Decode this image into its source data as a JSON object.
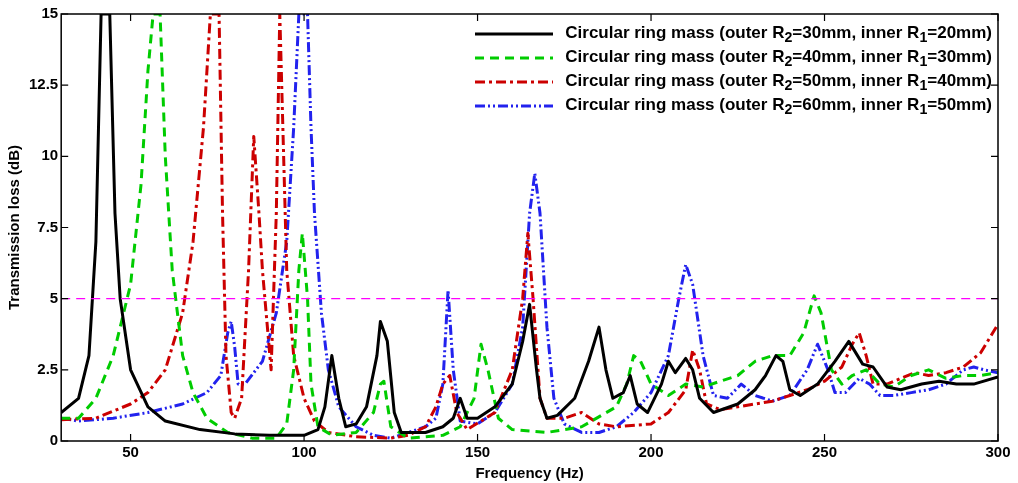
{
  "chart_data": {
    "type": "line",
    "xlabel": "Frequency (Hz)",
    "ylabel": "Transmission loss (dB)",
    "xlim": [
      30,
      300
    ],
    "xticks": [
      50,
      100,
      150,
      200,
      250,
      300
    ],
    "ylim": [
      0,
      15
    ],
    "yticks": [
      0,
      2.5,
      5,
      7.5,
      10,
      12.5,
      15
    ],
    "legend": "top right",
    "ref_lines": [
      {
        "axis": "y",
        "value": 5,
        "color": "#ff00ff",
        "line_style": "dashed"
      }
    ],
    "series": [
      {
        "name": "Circular ring mass (outer R$_{2}$=30mm, inner R$_{1}$=20mm)",
        "color": "#000000",
        "line_style": "solid",
        "x": [
          30,
          35,
          38,
          40,
          41.5,
          44,
          45.5,
          47,
          50,
          55,
          60,
          70,
          80,
          90,
          100,
          104,
          106,
          108,
          110,
          112,
          115,
          118,
          121,
          122,
          124,
          126,
          128,
          135,
          140,
          143,
          145,
          147,
          150,
          155,
          160,
          163,
          165,
          167,
          168,
          170,
          173,
          178,
          182,
          185,
          187,
          189,
          192,
          194,
          196,
          199,
          203,
          205,
          207,
          210,
          212,
          214,
          218,
          225,
          230,
          233,
          236,
          238,
          240,
          243,
          248,
          253,
          257,
          261,
          264,
          268,
          272,
          278,
          283,
          288,
          293,
          300
        ],
        "values": [
          1.0,
          1.5,
          3,
          7,
          15,
          15,
          8,
          5,
          2.5,
          1.2,
          0.7,
          0.4,
          0.25,
          0.2,
          0.2,
          0.4,
          1.2,
          3.0,
          1.5,
          0.5,
          0.6,
          1.2,
          3.0,
          4.2,
          3.5,
          1.0,
          0.3,
          0.3,
          0.5,
          0.8,
          1.5,
          0.8,
          0.8,
          1.2,
          2.0,
          3.5,
          4.8,
          2.5,
          1.5,
          0.8,
          0.9,
          1.5,
          2.8,
          4.0,
          2.5,
          1.5,
          1.7,
          2.3,
          1.3,
          1.0,
          2.0,
          2.8,
          2.4,
          2.9,
          2.5,
          1.5,
          1.0,
          1.3,
          1.8,
          2.3,
          3.0,
          2.8,
          1.8,
          1.6,
          2.0,
          2.8,
          3.5,
          2.7,
          2.6,
          1.9,
          1.8,
          2.0,
          2.1,
          2.0,
          2.0,
          2.25
        ]
      },
      {
        "name": "Circular ring mass (outer R$_{2}$=40mm, inner R$_{1}$=30mm)",
        "color": "#00cc00",
        "line_style": "dashed",
        "x": [
          30,
          35,
          40,
          45,
          50,
          53,
          55,
          56.5,
          58.5,
          60,
          62,
          65,
          68,
          72,
          78,
          85,
          92,
          95,
          97,
          98.5,
          99.5,
          101,
          102,
          104,
          108,
          115,
          120,
          122,
          123,
          125,
          130,
          140,
          145,
          149,
          151,
          153,
          156,
          160,
          170,
          180,
          190,
          193,
          195,
          197,
          200,
          205,
          210,
          215,
          220,
          225,
          230,
          235,
          240,
          244,
          247,
          249,
          252,
          255,
          258,
          262,
          266,
          270,
          275,
          280,
          285,
          290,
          295,
          300
        ],
        "values": [
          0.8,
          0.8,
          1.5,
          3,
          5.5,
          9,
          13,
          15,
          15,
          10,
          6,
          3,
          1.7,
          0.8,
          0.3,
          0.1,
          0.1,
          0.6,
          2.5,
          6,
          7.3,
          5,
          2,
          0.5,
          0.2,
          0.3,
          1.0,
          2.0,
          2.1,
          0.5,
          0.1,
          0.2,
          0.5,
          1.5,
          3.4,
          2.5,
          0.8,
          0.4,
          0.3,
          0.5,
          1.2,
          2,
          3.0,
          2.8,
          2.0,
          1.6,
          2.0,
          1.9,
          2.1,
          2.3,
          2.8,
          3.0,
          3.0,
          3.8,
          5.1,
          4.5,
          2.5,
          2.0,
          2.3,
          2.5,
          2.0,
          1.9,
          2.3,
          2.5,
          2.2,
          2.3,
          2.3,
          2.4
        ]
      },
      {
        "name": "Circular ring mass (outer R$_{2}$=50mm, inner R$_{1}$=40mm)",
        "color": "#cc0000",
        "line_style": "dashdot",
        "x": [
          30,
          40,
          50,
          55,
          60,
          65,
          68,
          71,
          73,
          75.5,
          76.5,
          77.5,
          79,
          80,
          82,
          84,
          85.5,
          87,
          88,
          90.5,
          92,
          93,
          95,
          97,
          100,
          103,
          107,
          115,
          125,
          130,
          135,
          138,
          140,
          142,
          144,
          147,
          155,
          160,
          163,
          164.5,
          166,
          168,
          170,
          175,
          180,
          185,
          190,
          200,
          205,
          210,
          212,
          214,
          216,
          220,
          225,
          230,
          235,
          240,
          245,
          250,
          255,
          258,
          260,
          262,
          264,
          268,
          272,
          276,
          280,
          285,
          290,
          295,
          300
        ],
        "values": [
          0.75,
          0.8,
          1.3,
          1.7,
          2.5,
          4.5,
          7,
          11,
          15,
          15,
          8,
          3,
          1,
          0.8,
          1.5,
          6,
          10.7,
          8,
          6,
          2.5,
          8,
          15,
          6,
          3,
          1.5,
          0.7,
          0.3,
          0.15,
          0.1,
          0.2,
          0.5,
          1.2,
          2.0,
          2.3,
          1.0,
          0.4,
          1.0,
          2.5,
          5,
          7.3,
          5,
          1.5,
          0.8,
          0.8,
          1.0,
          0.6,
          0.5,
          0.6,
          1.0,
          1.8,
          3.2,
          2.5,
          1.3,
          1.1,
          1.2,
          1.3,
          1.4,
          1.6,
          1.8,
          2.1,
          2.6,
          3.4,
          3.8,
          3.0,
          2.0,
          2.0,
          2.2,
          2.4,
          2.3,
          2.4,
          2.6,
          3.1,
          4.1
        ]
      },
      {
        "name": "Circular ring mass (outer R$_{2}$=60mm, inner R$_{1}$=50mm)",
        "color": "#2222ee",
        "line_style": "dashdotdot",
        "x": [
          30,
          35,
          45,
          55,
          65,
          72,
          76,
          78,
          79,
          80,
          81,
          83,
          88,
          92,
          95,
          97,
          98.5,
          101,
          102,
          103,
          105,
          107,
          110,
          115,
          120,
          125,
          130,
          135,
          138,
          140,
          141.5,
          143,
          145,
          150,
          155,
          160,
          163,
          165,
          166.5,
          168,
          170,
          172,
          175,
          180,
          185,
          190,
          195,
          200,
          205,
          208,
          210,
          212,
          215,
          218,
          222,
          226,
          230,
          235,
          240,
          245,
          248,
          251,
          253,
          256,
          260,
          263,
          266,
          270,
          275,
          280,
          285,
          290,
          293,
          296,
          300
        ],
        "values": [
          0.8,
          0.7,
          0.8,
          1.0,
          1.3,
          1.7,
          2.3,
          3.8,
          4.2,
          3.3,
          2.0,
          2.0,
          2.8,
          4.5,
          7,
          11,
          15,
          15,
          11,
          8,
          4.5,
          2.5,
          1.2,
          0.5,
          0.2,
          0.1,
          0.3,
          0.5,
          0.8,
          2,
          5.3,
          2.5,
          0.7,
          0.6,
          1.0,
          2.0,
          4,
          8,
          9.4,
          8,
          4,
          1.5,
          0.6,
          0.3,
          0.3,
          0.5,
          1.0,
          1.7,
          3.0,
          5.0,
          6.2,
          5.5,
          3,
          1.6,
          1.5,
          2.0,
          1.6,
          1.4,
          1.6,
          2.5,
          3.4,
          2.5,
          1.7,
          1.7,
          2.2,
          2.0,
          1.6,
          1.6,
          1.7,
          1.8,
          2.0,
          2.5,
          2.6,
          2.5,
          2.4
        ]
      }
    ]
  }
}
